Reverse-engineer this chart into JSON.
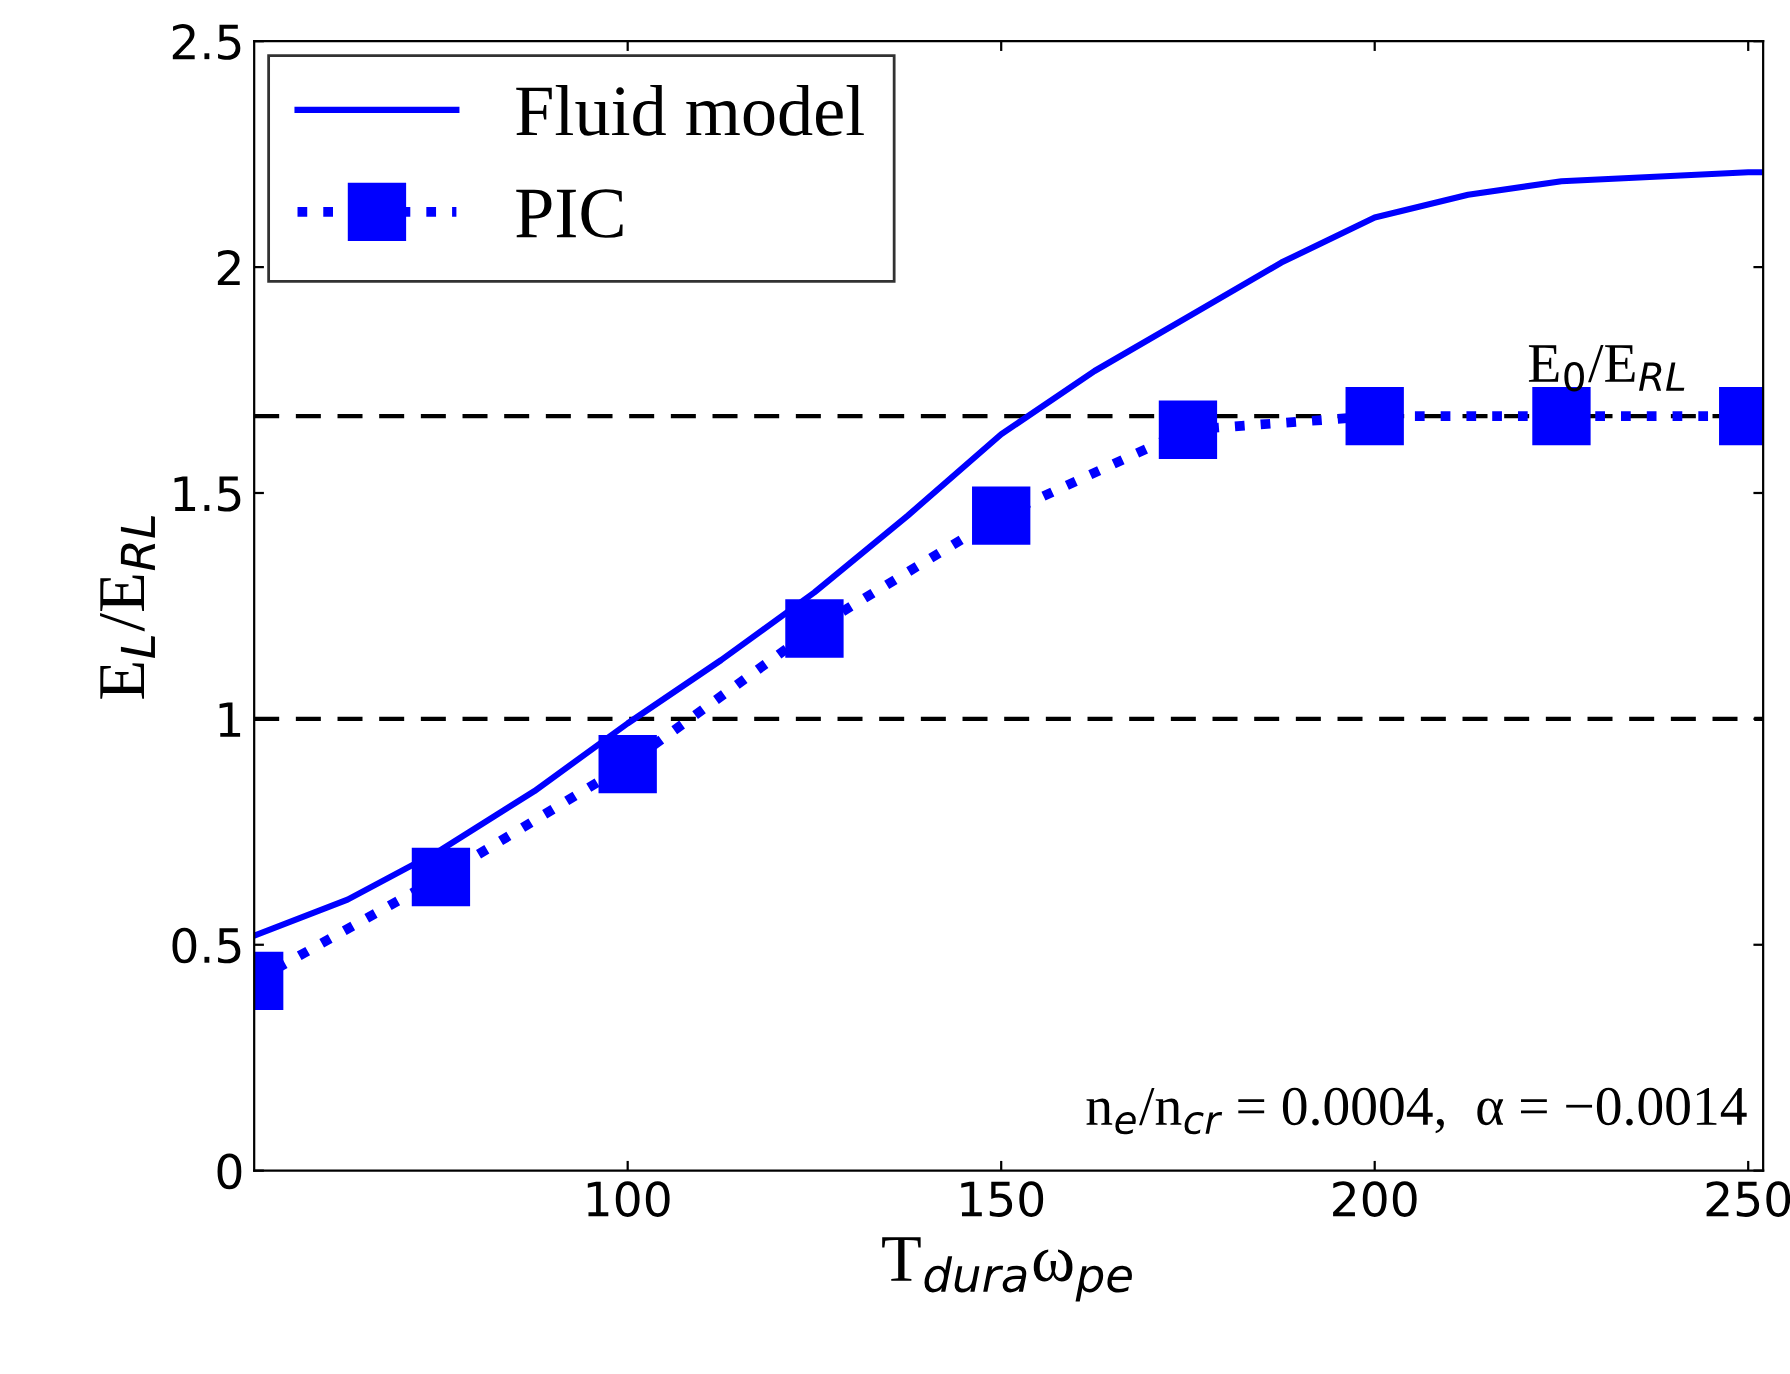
{
  "chart_data": {
    "type": "line",
    "xlabel": "T$_{dura}$ω$_{pe}$",
    "ylabel": "E$_{L}$/E$_{RL}$",
    "xlim": [
      50,
      252
    ],
    "ylim": [
      0,
      2.5
    ],
    "xticks": [
      100,
      150,
      200,
      250
    ],
    "yticks": [
      0,
      0.5,
      1,
      1.5,
      2,
      2.5
    ],
    "grid": false,
    "legend": "top left",
    "series": [
      {
        "name": "Fluid model",
        "color": "#0000ff",
        "line_style": "solid",
        "marker": "none",
        "x": [
          50,
          62.5,
          75,
          87.5,
          100,
          112.5,
          125,
          137.5,
          150,
          162.5,
          175,
          187.5,
          200,
          212.5,
          225,
          250,
          252
        ],
        "values": [
          0.52,
          0.6,
          0.71,
          0.84,
          0.99,
          1.13,
          1.28,
          1.45,
          1.63,
          1.77,
          1.89,
          2.01,
          2.11,
          2.16,
          2.19,
          2.21,
          2.21
        ]
      },
      {
        "name": "PIC",
        "color": "#0000ff",
        "line_style": "dotted",
        "marker": "square",
        "x": [
          50,
          75,
          100,
          125,
          150,
          175,
          200,
          225,
          250
        ],
        "values": [
          0.42,
          0.65,
          0.9,
          1.2,
          1.45,
          1.64,
          1.67,
          1.67,
          1.67
        ]
      }
    ],
    "ref_lines": [
      {
        "axis": "y",
        "value": 1.67,
        "label": "E$_{0}$/E$_{RL}$",
        "color": "#000000",
        "line_style": "dashed"
      },
      {
        "axis": "y",
        "value": 1,
        "color": "#000000",
        "line_style": "dashed"
      }
    ],
    "annotations": [
      "n$_{e}$/n$_{cr}$ = 0.0004,  α = −0.0014"
    ]
  }
}
